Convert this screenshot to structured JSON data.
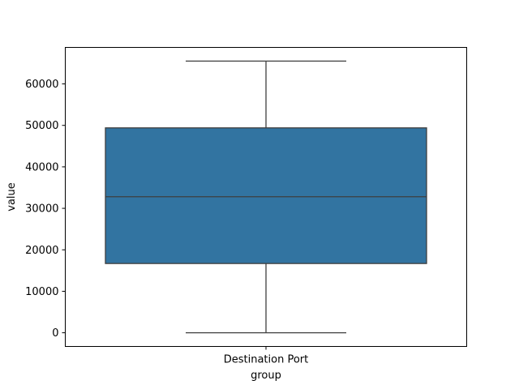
{
  "chart_data": {
    "type": "box",
    "title": "",
    "xlabel": "group",
    "ylabel": "value",
    "categories": [
      "Destination Port"
    ],
    "boxes": [
      {
        "category": "Destination Port",
        "whisker_low": 0,
        "q1": 16700,
        "median": 32800,
        "q3": 49400,
        "whisker_high": 65500
      }
    ],
    "ylim": [
      -3300,
      68800
    ],
    "yticks": [
      0,
      10000,
      20000,
      30000,
      40000,
      50000,
      60000
    ],
    "ytick_labels": [
      "0",
      "10000",
      "20000",
      "30000",
      "40000",
      "50000",
      "60000"
    ],
    "grid": false,
    "colors": {
      "box_fill": "#3274a1",
      "line": "#3f3f3f",
      "axis": "#000000"
    }
  }
}
